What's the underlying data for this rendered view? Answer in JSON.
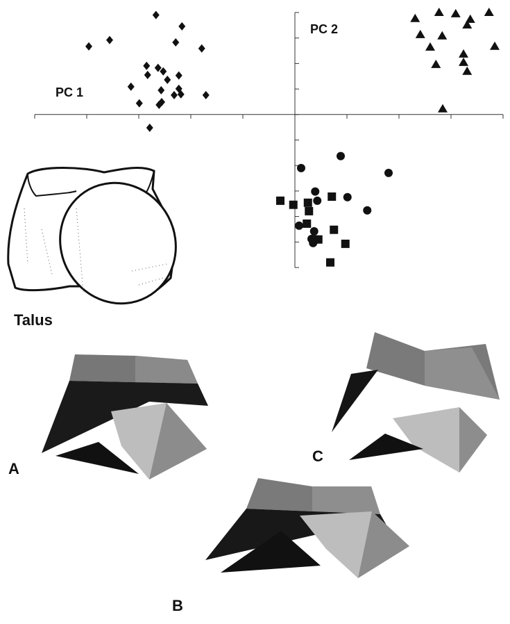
{
  "chart_data": {
    "type": "scatter",
    "xlim": [
      -5,
      4
    ],
    "ylim": [
      -6,
      4
    ],
    "xticks": [
      -5,
      -4,
      -3,
      -2,
      -1,
      0,
      1,
      2,
      3,
      4
    ],
    "yticks": [
      -6,
      -5,
      -4,
      -3,
      -2,
      -1,
      0,
      1,
      2,
      3,
      4
    ],
    "axis_labels": [
      "PC 1",
      "PC 2"
    ],
    "series": [
      {
        "marker": "diamond",
        "color": "#111111",
        "x": [
          -2.67,
          -2.17,
          -3.96,
          -3.56,
          -2.29,
          -1.79,
          -2.85,
          -2.63,
          -2.53,
          -2.23,
          -2.83,
          -2.45,
          -3.15,
          -2.23,
          -2.57,
          -2.32,
          -2.19,
          -1.71,
          -2.99,
          -2.61,
          -2.56,
          -2.79
        ],
        "y": [
          3.9,
          3.46,
          2.67,
          2.92,
          2.83,
          2.59,
          1.91,
          1.83,
          1.69,
          1.53,
          1.55,
          1.36,
          1.09,
          1.01,
          0.95,
          0.76,
          0.79,
          0.76,
          0.44,
          0.38,
          0.49,
          -0.52
        ]
      },
      {
        "marker": "triangle",
        "color": "#111111",
        "x": [
          2.31,
          2.77,
          3.09,
          3.37,
          3.73,
          3.31,
          2.41,
          2.83,
          2.6,
          3.24,
          3.84,
          2.71,
          3.24,
          3.31,
          2.84
        ],
        "y": [
          3.76,
          4.0,
          3.95,
          3.73,
          4.0,
          3.51,
          3.13,
          3.08,
          2.64,
          2.37,
          2.67,
          1.96,
          2.04,
          1.69,
          0.22
        ]
      },
      {
        "marker": "circle",
        "color": "#111111",
        "x": [
          0.88,
          0.12,
          1.8,
          0.39,
          1.01,
          0.43,
          1.39,
          0.08,
          0.37,
          0.32,
          0.35
        ],
        "y": [
          -1.63,
          -2.1,
          -2.29,
          -3.02,
          -3.24,
          -3.38,
          -3.76,
          -4.36,
          -4.58,
          -4.88,
          -5.04
        ]
      },
      {
        "marker": "square",
        "color": "#111111",
        "x": [
          -0.28,
          -0.03,
          0.25,
          0.71,
          0.27,
          0.23,
          0.75,
          0.37,
          0.45,
          0.97,
          0.68
        ],
        "y": [
          -3.38,
          -3.54,
          -3.46,
          -3.22,
          -3.79,
          -4.28,
          -4.52,
          -4.9,
          -4.9,
          -5.07,
          -5.8
        ]
      }
    ]
  },
  "figure_labels": {
    "talus": "Talus",
    "a": "A",
    "b": "B",
    "c": "C"
  }
}
